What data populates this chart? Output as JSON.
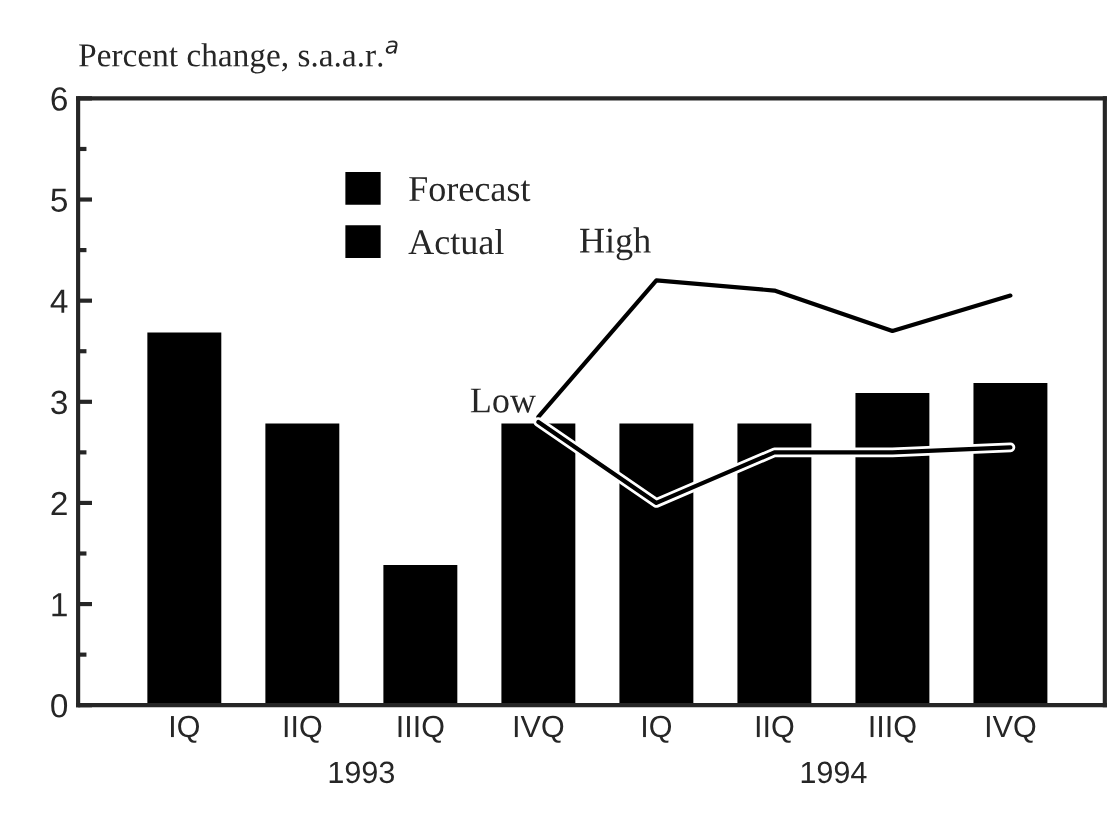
{
  "chart_data": {
    "type": "bar",
    "ylabel": "Percent change, s.a.a.r.$^{a}$",
    "categories": [
      "IQ",
      "IIQ",
      "IIIQ",
      "IVQ",
      "IQ",
      "IIQ",
      "IIIQ",
      "IVQ"
    ],
    "series": [
      {
        "name": "Forecast",
        "color": "#000000",
        "values": [
          null,
          null,
          null,
          2.8,
          2.8,
          2.8,
          3.1,
          3.2
        ]
      },
      {
        "name": "Actual",
        "color": "#000000",
        "values": [
          3.7,
          2.8,
          1.4,
          null,
          null,
          null,
          null,
          null
        ]
      },
      {
        "name": "High",
        "type": "line",
        "color": "#000000",
        "values": [
          null,
          null,
          null,
          2.85,
          4.2,
          4.1,
          3.7,
          4.05
        ]
      },
      {
        "name": "Low",
        "type": "line",
        "color": "#000000",
        "values": [
          null,
          null,
          null,
          2.8,
          2.0,
          2.5,
          2.5,
          2.55
        ]
      }
    ],
    "annotations": [
      "1993",
      "1994"
    ],
    "ylim": [
      0,
      6
    ],
    "yticks": [
      0,
      1,
      2,
      3,
      4,
      5,
      6
    ],
    "legend": "top left",
    "grid": false
  }
}
